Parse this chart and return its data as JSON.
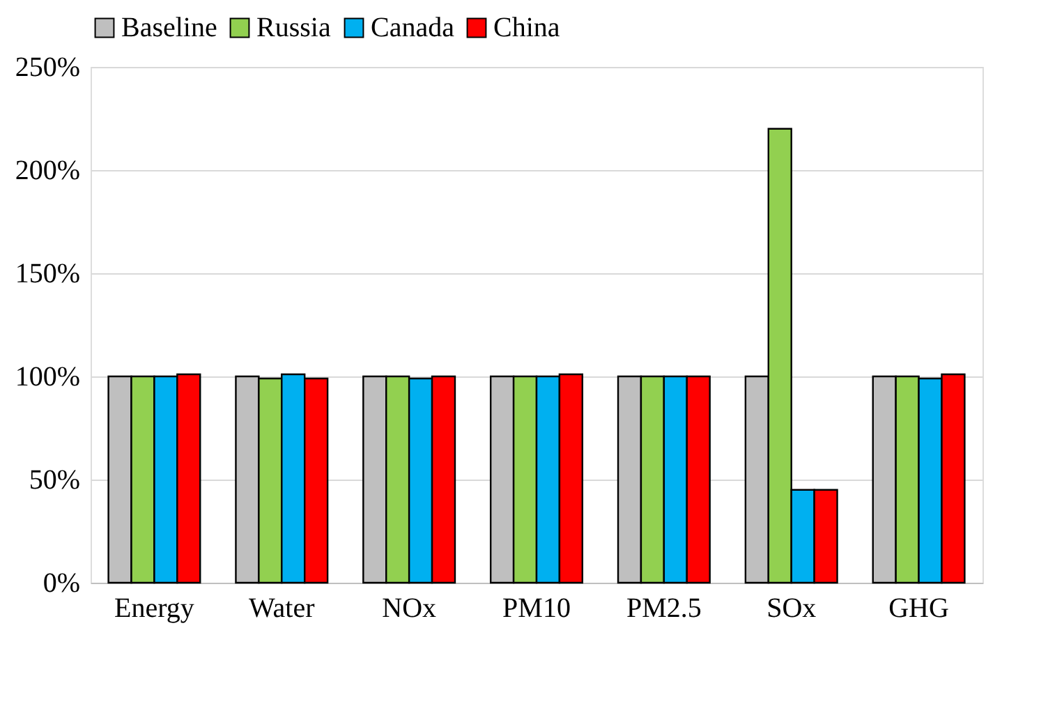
{
  "chart_data": {
    "type": "bar",
    "categories": [
      "Energy",
      "Water",
      "NOx",
      "PM10",
      "PM2.5",
      "SOx",
      "GHG"
    ],
    "series": [
      {
        "name": "Baseline",
        "color": "#bfbfbf",
        "values": [
          100,
          100,
          100,
          100,
          100,
          100,
          100
        ]
      },
      {
        "name": "Russia",
        "color": "#92d050",
        "values": [
          100,
          99,
          100,
          100,
          100,
          220,
          100
        ]
      },
      {
        "name": "Canada",
        "color": "#00b0f0",
        "values": [
          100,
          101,
          99,
          100,
          100,
          45,
          99
        ]
      },
      {
        "name": "China",
        "color": "#ff0000",
        "values": [
          101,
          99,
          100,
          101,
          100,
          45,
          101
        ]
      }
    ],
    "ylim": [
      0,
      250
    ],
    "yticks": [
      {
        "value": 0,
        "label": "0%"
      },
      {
        "value": 50,
        "label": "50%"
      },
      {
        "value": 100,
        "label": "100%"
      },
      {
        "value": 150,
        "label": "150%"
      },
      {
        "value": 200,
        "label": "200%"
      },
      {
        "value": 250,
        "label": "250%"
      }
    ],
    "grid": "y",
    "legend": "top"
  }
}
